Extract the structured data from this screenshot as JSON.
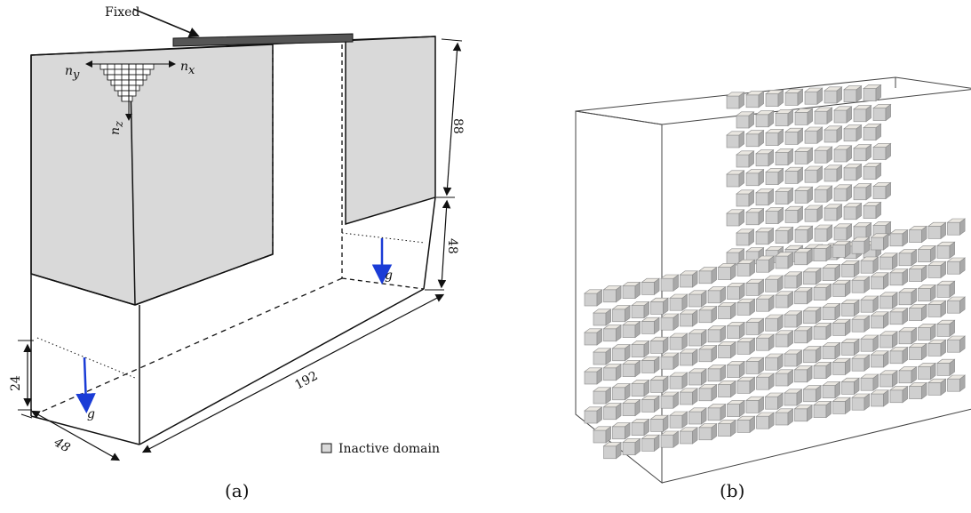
{
  "panel_a": {
    "caption": "(a)",
    "fixed_label": "Fixed",
    "axis_labels": {
      "nx": "n",
      "nx_sub": "x",
      "ny": "n",
      "ny_sub": "y",
      "nz": "n",
      "nz_sub": "z"
    },
    "dimensions": {
      "top_height": "88",
      "mid_height": "48",
      "low_height": "24",
      "length": "192",
      "width": "48"
    },
    "gravity_label": "g",
    "legend_label": "Inactive domain",
    "colors": {
      "inactive": "#d9d9d9",
      "fixed": "#555555",
      "gravity": "#1a3cd6"
    }
  },
  "panel_b": {
    "caption": "(b)",
    "colors": {
      "lattice": "#cfcfcf",
      "box_edge": "#444444"
    }
  }
}
